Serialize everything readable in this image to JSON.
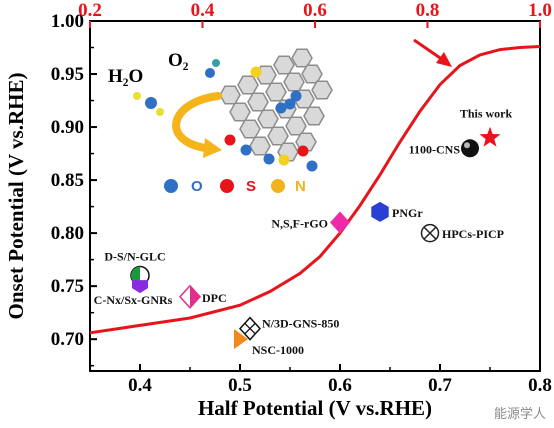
{
  "chart_data": {
    "type": "scatter",
    "title": "",
    "xlabel": "Half Potential (V vs.RHE)",
    "ylabel": "Onset Potential (V vs.RHE)",
    "xlim": [
      0.35,
      0.8
    ],
    "ylim": [
      0.67,
      1.0
    ],
    "x_ticks": [
      "0.4",
      "0.5",
      "0.6",
      "0.7",
      "0.8"
    ],
    "y_ticks": [
      "0.70",
      "0.75",
      "0.80",
      "0.85",
      "0.90",
      "0.95",
      "1.00"
    ],
    "x2_ticks": [
      "0.2",
      "0.4",
      "0.6",
      "0.8",
      "1.0"
    ],
    "x2_color": "#e8141b",
    "grid": false,
    "points": [
      {
        "label": "This work",
        "x": 0.75,
        "y": 0.89,
        "marker": "star",
        "color": "#e8141b",
        "label_color": "#e8141b"
      },
      {
        "label": "1100-CNS",
        "x": 0.73,
        "y": 0.88,
        "marker": "sphere",
        "color": "#111111"
      },
      {
        "label": "PNGr",
        "x": 0.64,
        "y": 0.82,
        "marker": "hexagon",
        "color": "#2a3fd4"
      },
      {
        "label": "HPCs-PICP",
        "x": 0.69,
        "y": 0.8,
        "marker": "circle-x",
        "color": "#222222"
      },
      {
        "label": "N,S,F-rGO",
        "x": 0.6,
        "y": 0.81,
        "marker": "diamond",
        "color": "#ee2aa8"
      },
      {
        "label": "D-S/N-GLC",
        "x": 0.4,
        "y": 0.76,
        "marker": "half-circle",
        "color": "#1a9a3a"
      },
      {
        "label": "C-Nx/Sx-GNRs",
        "x": 0.4,
        "y": 0.75,
        "marker": "pentagon",
        "color": "#8a2be2"
      },
      {
        "label": "DPC",
        "x": 0.45,
        "y": 0.74,
        "marker": "diamond-half",
        "color": "#e0308a"
      },
      {
        "label": "N/3D-GNS-850",
        "x": 0.51,
        "y": 0.71,
        "marker": "diamond-x",
        "color": "#111111"
      },
      {
        "label": "NSC-1000",
        "x": 0.5,
        "y": 0.7,
        "marker": "triangle",
        "color": "#f08a1c"
      }
    ],
    "curve": {
      "color": "#e8141b",
      "x": [
        0.35,
        0.4,
        0.45,
        0.5,
        0.53,
        0.56,
        0.58,
        0.6,
        0.62,
        0.64,
        0.66,
        0.68,
        0.7,
        0.72,
        0.74,
        0.76,
        0.78,
        0.8
      ],
      "y": [
        0.706,
        0.713,
        0.72,
        0.732,
        0.745,
        0.762,
        0.778,
        0.8,
        0.826,
        0.855,
        0.886,
        0.915,
        0.94,
        0.958,
        0.968,
        0.973,
        0.975,
        0.976
      ]
    },
    "inset_legend": [
      {
        "symbol": "C",
        "color": "#2f6fc4"
      },
      {
        "symbol": "O",
        "color": "#2f6fc4"
      },
      {
        "symbol": "S",
        "color": "#e8141b"
      },
      {
        "symbol": "N",
        "color": "#f2b21e"
      }
    ],
    "inset_molecules": [
      "H₂O",
      "O₂"
    ]
  },
  "watermark": "能源学人"
}
